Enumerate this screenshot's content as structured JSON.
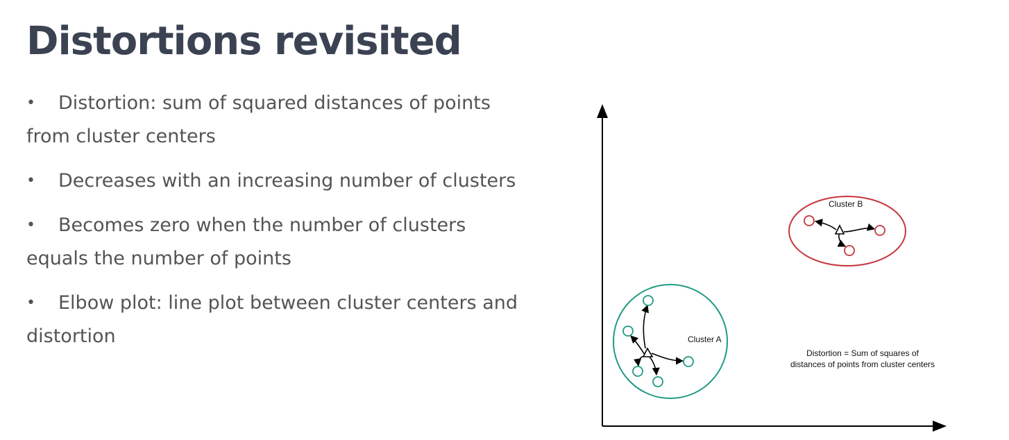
{
  "slide": {
    "title": "Distortions revisited",
    "bullets": [
      "Distortion: sum of squared distances of points from cluster centers",
      "Decreases with an increasing number of clusters",
      "Becomes zero when the number of clusters equals the number of points",
      "Elbow plot: line plot between cluster centers and distortion"
    ]
  },
  "diagram": {
    "cluster_a": {
      "label": "Cluster A",
      "color": "#1f9a83",
      "points": 5
    },
    "cluster_b": {
      "label": "Cluster B",
      "color": "#c6353d",
      "points": 3
    },
    "caption_line1": "Distortion = Sum of squares of",
    "caption_line2": "distances of points from cluster centers"
  }
}
